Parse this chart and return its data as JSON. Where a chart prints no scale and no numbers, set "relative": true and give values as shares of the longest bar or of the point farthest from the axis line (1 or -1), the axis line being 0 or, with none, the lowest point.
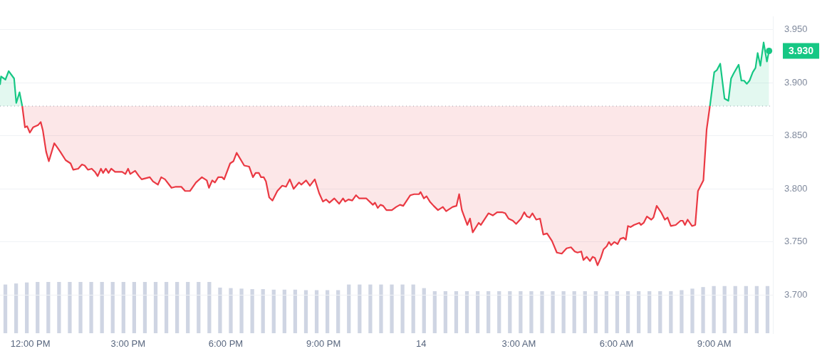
{
  "chart_data": [
    {
      "type": "area",
      "xlim": [
        "--01-13T11:04",
        "--01-14T10:48"
      ],
      "ylim": [
        3.664,
        3.962
      ],
      "xticks": [
        {
          "value": "--01-13T12:00",
          "label": "12:00 PM"
        },
        {
          "value": "--01-13T15:00",
          "label": "3:00 PM"
        },
        {
          "value": "--01-13T18:00",
          "label": "6:00 PM"
        },
        {
          "value": "--01-13T21:00",
          "label": "9:00 PM"
        },
        {
          "value": "--01-14T00:00",
          "label": "14"
        },
        {
          "value": "--01-14T03:00",
          "label": "3:00 AM"
        },
        {
          "value": "--01-14T06:00",
          "label": "6:00 AM"
        },
        {
          "value": "--01-14T09:00",
          "label": "9:00 AM"
        }
      ],
      "yticks": [
        {
          "value": 3.7,
          "label": "3.700"
        },
        {
          "value": 3.75,
          "label": "3.750"
        },
        {
          "value": 3.8,
          "label": "3.800"
        },
        {
          "value": 3.85,
          "label": "3.850"
        },
        {
          "value": 3.9,
          "label": "3.900"
        },
        {
          "value": 3.95,
          "label": "3.950"
        }
      ],
      "grid": "y",
      "legend": false,
      "marker": "none",
      "line_style": "solid",
      "ref_lines": [
        {
          "axis": "y",
          "value": 3.878,
          "color": "#9aa0ab",
          "line_style": "dotted"
        }
      ],
      "series": [
        {
          "color": "#16c784",
          "x": [
            "--01-13T11:04",
            "--01-13T11:06",
            "--01-13T11:14",
            "--01-13T11:20",
            "--01-13T11:30",
            "--01-13T11:34",
            "--01-13T11:40",
            "--01-13T11:45"
          ],
          "values": [
            3.898,
            3.906,
            3.903,
            3.911,
            3.904,
            3.881,
            3.891,
            3.878
          ]
        },
        {
          "color": "#ea3943",
          "x": [
            "--01-13T11:45",
            "--01-13T11:50",
            "--01-13T11:54",
            "--01-13T11:59",
            "--01-13T12:05",
            "--01-13T12:14",
            "--01-13T12:19",
            "--01-13T12:23",
            "--01-13T12:29",
            "--01-13T12:34",
            "--01-13T12:44",
            "--01-13T12:51",
            "--01-13T12:55",
            "--01-13T13:05",
            "--01-13T13:14",
            "--01-13T13:19",
            "--01-13T13:28",
            "--01-13T13:35",
            "--01-13T13:40",
            "--01-13T13:46",
            "--01-13T13:53",
            "--01-13T13:59",
            "--01-13T14:04",
            "--01-13T14:10",
            "--01-13T14:14",
            "--01-13T14:19",
            "--01-13T14:24",
            "--01-13T14:29",
            "--01-13T14:36",
            "--01-13T14:43",
            "--01-13T14:49",
            "--01-13T14:55",
            "--01-13T15:00",
            "--01-13T15:04",
            "--01-13T15:13",
            "--01-13T15:20",
            "--01-13T15:25",
            "--01-13T15:40",
            "--01-13T15:46",
            "--01-13T15:55",
            "--01-13T16:01",
            "--01-13T16:08",
            "--01-13T16:20",
            "--01-13T16:28",
            "--01-13T16:38",
            "--01-13T16:45",
            "--01-13T16:54",
            "--01-13T17:05",
            "--01-13T17:16",
            "--01-13T17:25",
            "--01-13T17:29",
            "--01-13T17:35",
            "--01-13T17:40",
            "--01-13T17:46",
            "--01-13T17:53",
            "--01-13T17:57",
            "--01-13T18:08",
            "--01-13T18:14",
            "--01-13T18:20",
            "--01-13T18:34",
            "--01-13T18:43",
            "--01-13T18:50",
            "--01-13T18:55",
            "--01-13T19:01",
            "--01-13T19:05",
            "--01-13T19:10",
            "--01-13T19:14",
            "--01-13T19:20",
            "--01-13T19:26",
            "--01-13T19:35",
            "--01-13T19:44",
            "--01-13T19:51",
            "--01-13T19:58",
            "--01-13T20:05",
            "--01-13T20:15",
            "--01-13T20:19",
            "--01-13T20:28",
            "--01-13T20:35",
            "--01-13T20:44",
            "--01-13T20:52",
            "--01-13T20:59",
            "--01-13T21:05",
            "--01-13T21:11",
            "--01-13T21:20",
            "--01-13T21:29",
            "--01-13T21:36",
            "--01-13T21:40",
            "--01-13T21:46",
            "--01-13T21:53",
            "--01-13T22:00",
            "--01-13T22:06",
            "--01-13T22:19",
            "--01-13T22:31",
            "--01-13T22:35",
            "--01-13T22:40",
            "--01-13T22:45",
            "--01-13T22:50",
            "--01-13T22:56",
            "--01-13T23:06",
            "--01-13T23:14",
            "--01-13T23:21",
            "--01-13T23:27",
            "--01-13T23:40",
            "--01-13T23:47",
            "--01-13T23:56",
            "--01-13T23:59",
            "--01-14T00:05",
            "--01-14T00:10",
            "--01-14T00:16",
            "--01-14T00:23",
            "--01-14T00:31",
            "--01-14T00:40",
            "--01-14T00:46",
            "--01-14T00:58",
            "--01-14T01:05",
            "--01-14T01:10",
            "--01-14T01:15",
            "--01-14T01:25",
            "--01-14T01:30",
            "--01-14T01:35",
            "--01-14T01:46",
            "--01-14T01:50",
            "--01-14T02:04",
            "--01-14T02:12",
            "--01-14T02:20",
            "--01-14T02:29",
            "--01-14T02:35",
            "--01-14T02:41",
            "--01-14T02:49",
            "--01-14T02:55",
            "--01-14T03:04",
            "--01-14T03:10",
            "--01-14T03:15",
            "--01-14T03:20",
            "--01-14T03:25",
            "--01-14T03:32",
            "--01-14T03:39",
            "--01-14T03:45",
            "--01-14T03:52",
            "--01-14T04:01",
            "--01-14T04:10",
            "--01-14T04:19",
            "--01-14T04:28",
            "--01-14T04:36",
            "--01-14T04:43",
            "--01-14T04:48",
            "--01-14T04:55",
            "--01-14T04:59",
            "--01-14T05:05",
            "--01-14T05:11",
            "--01-14T05:16",
            "--01-14T05:20",
            "--01-14T05:25",
            "--01-14T05:31",
            "--01-14T05:36",
            "--01-14T05:42",
            "--01-14T05:46",
            "--01-14T05:50",
            "--01-14T05:56",
            "--01-14T06:02",
            "--01-14T06:07",
            "--01-14T06:13",
            "--01-14T06:17",
            "--01-14T06:21",
            "--01-14T06:26",
            "--01-14T06:32",
            "--01-14T06:42",
            "--01-14T06:45",
            "--01-14T06:50",
            "--01-14T06:56",
            "--01-14T07:04",
            "--01-14T07:08",
            "--01-14T07:14",
            "--01-14T07:22",
            "--01-14T07:29",
            "--01-14T07:34",
            "--01-14T07:40",
            "--01-14T07:49",
            "--01-14T07:58",
            "--01-14T08:02",
            "--01-14T08:06",
            "--01-14T08:11",
            "--01-14T08:19",
            "--01-14T08:25",
            "--01-14T08:30",
            "--01-14T08:40",
            "--01-14T08:46",
            "--01-14T08:52"
          ],
          "values": [
            3.878,
            3.858,
            3.859,
            3.853,
            3.858,
            3.86,
            3.863,
            3.855,
            3.835,
            3.826,
            3.843,
            3.838,
            3.835,
            3.827,
            3.824,
            3.818,
            3.819,
            3.823,
            3.822,
            3.818,
            3.819,
            3.816,
            3.812,
            3.819,
            3.815,
            3.819,
            3.815,
            3.819,
            3.816,
            3.816,
            3.816,
            3.814,
            3.819,
            3.814,
            3.817,
            3.812,
            3.809,
            3.811,
            3.807,
            3.804,
            3.811,
            3.809,
            3.801,
            3.802,
            3.802,
            3.798,
            3.798,
            3.806,
            3.811,
            3.808,
            3.801,
            3.808,
            3.806,
            3.811,
            3.811,
            3.809,
            3.824,
            3.826,
            3.834,
            3.822,
            3.821,
            3.811,
            3.815,
            3.815,
            3.811,
            3.811,
            3.807,
            3.792,
            3.789,
            3.798,
            3.803,
            3.802,
            3.809,
            3.8,
            3.806,
            3.804,
            3.808,
            3.803,
            3.809,
            3.796,
            3.788,
            3.79,
            3.787,
            3.791,
            3.786,
            3.791,
            3.788,
            3.79,
            3.789,
            3.794,
            3.791,
            3.791,
            3.785,
            3.787,
            3.782,
            3.785,
            3.784,
            3.78,
            3.78,
            3.783,
            3.785,
            3.784,
            3.794,
            3.795,
            3.795,
            3.797,
            3.791,
            3.793,
            3.788,
            3.784,
            3.78,
            3.783,
            3.779,
            3.783,
            3.784,
            3.795,
            3.78,
            3.766,
            3.772,
            3.759,
            3.768,
            3.766,
            3.777,
            3.775,
            3.778,
            3.778,
            3.777,
            3.772,
            3.77,
            3.767,
            3.772,
            3.778,
            3.774,
            3.773,
            3.777,
            3.771,
            3.772,
            3.757,
            3.758,
            3.751,
            3.74,
            3.739,
            3.744,
            3.745,
            3.741,
            3.74,
            3.741,
            3.733,
            3.736,
            3.732,
            3.736,
            3.735,
            3.728,
            3.735,
            3.743,
            3.746,
            3.75,
            3.747,
            3.75,
            3.748,
            3.753,
            3.754,
            3.752,
            3.765,
            3.764,
            3.766,
            3.768,
            3.766,
            3.768,
            3.774,
            3.771,
            3.773,
            3.784,
            3.778,
            3.771,
            3.773,
            3.765,
            3.766,
            3.77,
            3.77,
            3.766,
            3.771,
            3.765,
            3.766,
            3.798,
            3.808,
            3.856,
            3.878
          ]
        },
        {
          "color": "#16c784",
          "x": [
            "--01-14T08:52",
            "--01-14T09:00",
            "--01-14T09:05",
            "--01-14T09:11",
            "--01-14T09:19",
            "--01-14T09:26",
            "--01-14T09:31",
            "--01-14T09:36",
            "--01-14T09:45",
            "--01-14T09:50",
            "--01-14T09:55",
            "--01-14T10:00",
            "--01-14T10:05",
            "--01-14T10:11",
            "--01-14T10:16",
            "--01-14T10:20",
            "--01-14T10:25",
            "--01-14T10:31",
            "--01-14T10:37",
            "--01-14T10:41"
          ],
          "values": [
            3.878,
            3.91,
            3.912,
            3.918,
            3.885,
            3.883,
            3.904,
            3.909,
            3.917,
            3.902,
            3.902,
            3.899,
            3.902,
            3.91,
            3.914,
            3.928,
            3.916,
            3.938,
            3.92,
            3.93
          ],
          "value_labels": [
            null,
            null,
            null,
            null,
            null,
            null,
            null,
            null,
            null,
            null,
            null,
            null,
            null,
            null,
            null,
            null,
            null,
            null,
            null,
            "3.930"
          ]
        }
      ]
    },
    {
      "type": "bar",
      "relative": true,
      "tick_labels": false,
      "grid": false,
      "legend": false,
      "color": "#cfd5e3",
      "categories": [
        null,
        null,
        null,
        null,
        null,
        null,
        null,
        null,
        null,
        null,
        null,
        null,
        null,
        null,
        null,
        null,
        null,
        null,
        null,
        null,
        null,
        null,
        null,
        null,
        null,
        null,
        null,
        null,
        null,
        null,
        null,
        null,
        null,
        null,
        null,
        null,
        null,
        null,
        null,
        null,
        null,
        null,
        null,
        null,
        null,
        null,
        null,
        null,
        null,
        null,
        null,
        null,
        null,
        null,
        null,
        null,
        null,
        null,
        null,
        null,
        null,
        null,
        null,
        null,
        null,
        null,
        null,
        null,
        null,
        null,
        null,
        null
      ],
      "values": [
        0.95,
        0.97,
        0.99,
        1,
        1,
        1,
        1,
        1,
        1,
        1,
        1,
        1,
        1,
        1,
        1,
        1,
        1,
        1,
        1,
        1,
        0.89,
        0.88,
        0.87,
        0.86,
        0.86,
        0.85,
        0.85,
        0.85,
        0.84,
        0.84,
        0.84,
        0.84,
        0.95,
        0.95,
        0.95,
        0.95,
        0.95,
        0.95,
        0.95,
        0.88,
        0.82,
        0.82,
        0.82,
        0.82,
        0.82,
        0.82,
        0.82,
        0.82,
        0.82,
        0.82,
        0.82,
        0.82,
        0.82,
        0.82,
        0.82,
        0.82,
        0.82,
        0.82,
        0.82,
        0.82,
        0.82,
        0.82,
        0.82,
        0.84,
        0.87,
        0.9,
        0.92,
        0.92,
        0.92,
        0.92,
        0.92,
        0.92
      ]
    }
  ]
}
